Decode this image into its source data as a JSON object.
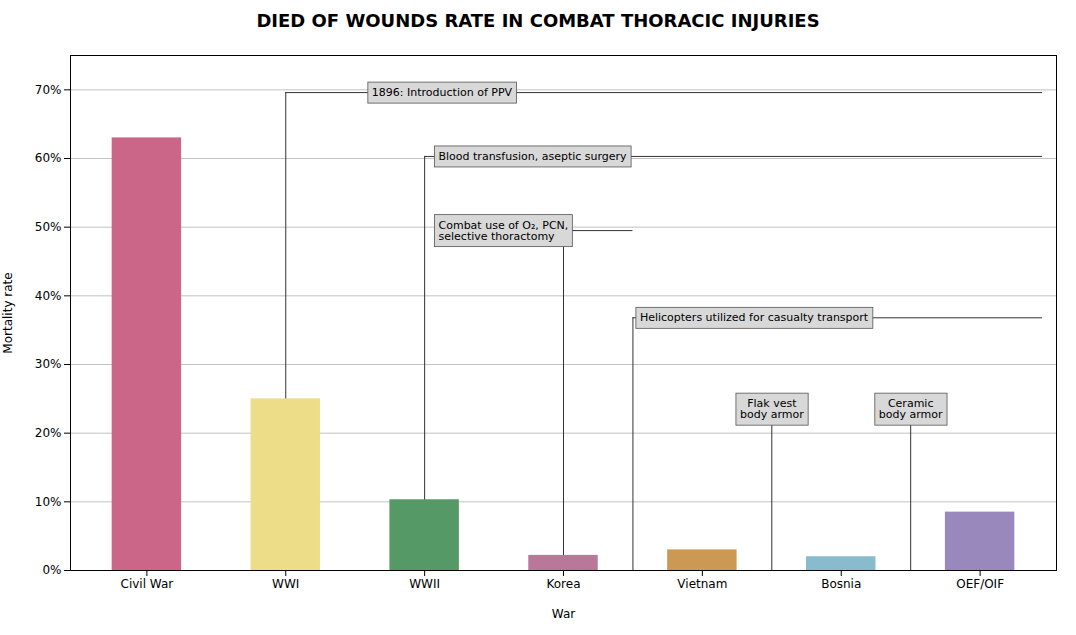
{
  "chart_data": {
    "type": "bar",
    "title": "DIED OF WOUNDS RATE IN COMBAT THORACIC INJURIES",
    "categories": [
      "Civil War",
      "WWI",
      "WWII",
      "Korea",
      "Vietnam",
      "Bosnia",
      "OEF/OIF"
    ],
    "values": [
      0.63,
      0.25,
      0.103,
      0.022,
      0.03,
      0.02,
      0.085
    ],
    "colors": [
      "#cc6688",
      "#eedd88",
      "#559966",
      "#bb7799",
      "#cc9955",
      "#88bbcc",
      "#9988bb"
    ],
    "xlabel": "War",
    "ylabel": "Mortality rate",
    "ylim": [
      0,
      0.75
    ],
    "yticks": [
      {
        "value": 0.0,
        "label": "0%"
      },
      {
        "value": 0.1,
        "label": "10%"
      },
      {
        "value": 0.2,
        "label": "20%"
      },
      {
        "value": 0.3,
        "label": "30%"
      },
      {
        "value": 0.4,
        "label": "40%"
      },
      {
        "value": 0.5,
        "label": "50%"
      },
      {
        "value": 0.6,
        "label": "60%"
      },
      {
        "value": 0.7,
        "label": "70%"
      }
    ],
    "grid": true,
    "annotations": [
      {
        "text": "1896: Introduction of PPV",
        "x": 1.62,
        "y": 0.696
      },
      {
        "text": "Blood transfusion, aseptic surgery",
        "x": 2.1,
        "y": 0.603
      },
      {
        "text": "Combat use of O₂, PCN,\nselective thoractomy",
        "x": 2.1,
        "y": 0.495
      },
      {
        "text": "Helicopters utilized for casualty transport",
        "x": 3.55,
        "y": 0.368
      },
      {
        "text": "Flak vest\nbody armor",
        "x": 4.5,
        "y": 0.235
      },
      {
        "text": "Ceramic\nbody armor",
        "x": 5.5,
        "y": 0.235
      }
    ]
  }
}
